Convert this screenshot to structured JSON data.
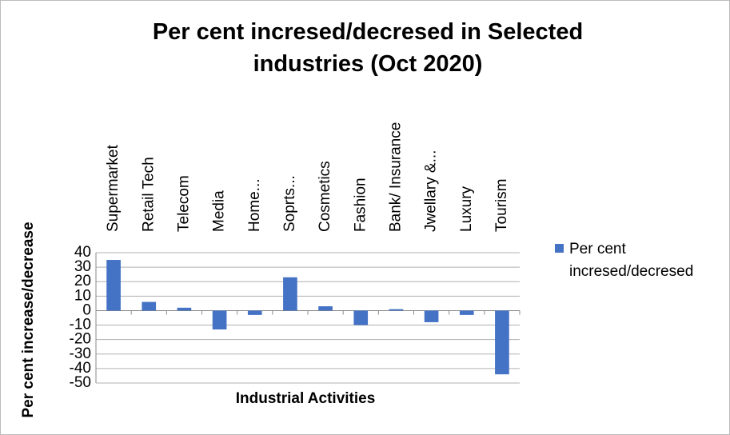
{
  "chart_data": {
    "type": "bar",
    "title": "Per cent incresed/decresed in Selected industries (Oct 2020)",
    "x_label": "Industrial Activities",
    "y_label": "Per cent increase/decrease",
    "categories": [
      "Supermarket",
      "Retail Tech",
      "Telecom",
      "Media",
      "Home...",
      "Soprts...",
      "Cosmetics",
      "Fashion",
      "Bank/ Insurance",
      "Jwellary &...",
      "Luxury",
      "Tourism"
    ],
    "series": [
      {
        "name": "Per cent incresed/decresed",
        "color": "#4472c4",
        "values": [
          35,
          6,
          2,
          -13,
          -3,
          23,
          3,
          -10,
          1,
          -8,
          -3,
          -44
        ]
      }
    ],
    "ylim": [
      -50,
      40
    ],
    "yticks": [
      40,
      30,
      20,
      10,
      0,
      -10,
      -20,
      -30,
      -40,
      -50
    ],
    "grid": true,
    "legend": "right"
  }
}
